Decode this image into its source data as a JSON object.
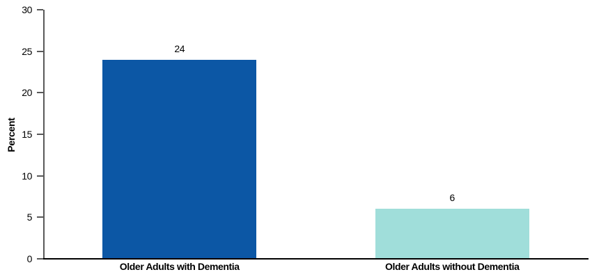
{
  "chart_data": {
    "type": "bar",
    "title": "",
    "xlabel": "",
    "ylabel": "Percent",
    "categories": [
      "Older Adults with Dementia",
      "Older Adults without Dementia"
    ],
    "values": [
      24,
      6
    ],
    "value_labels": [
      "24",
      "6"
    ],
    "bar_colors": [
      "#0C57A5",
      "#A0DEDA"
    ],
    "ylim": [
      0,
      30
    ],
    "yticks": [
      0,
      5,
      10,
      15,
      20,
      25,
      30
    ],
    "grid": false,
    "legend_position": "none"
  },
  "colors": {
    "y_axis_line": "#595959",
    "y_tick_mark": "#595959",
    "x_axis_line": "#000000",
    "text": "#000000",
    "background": "#ffffff"
  }
}
